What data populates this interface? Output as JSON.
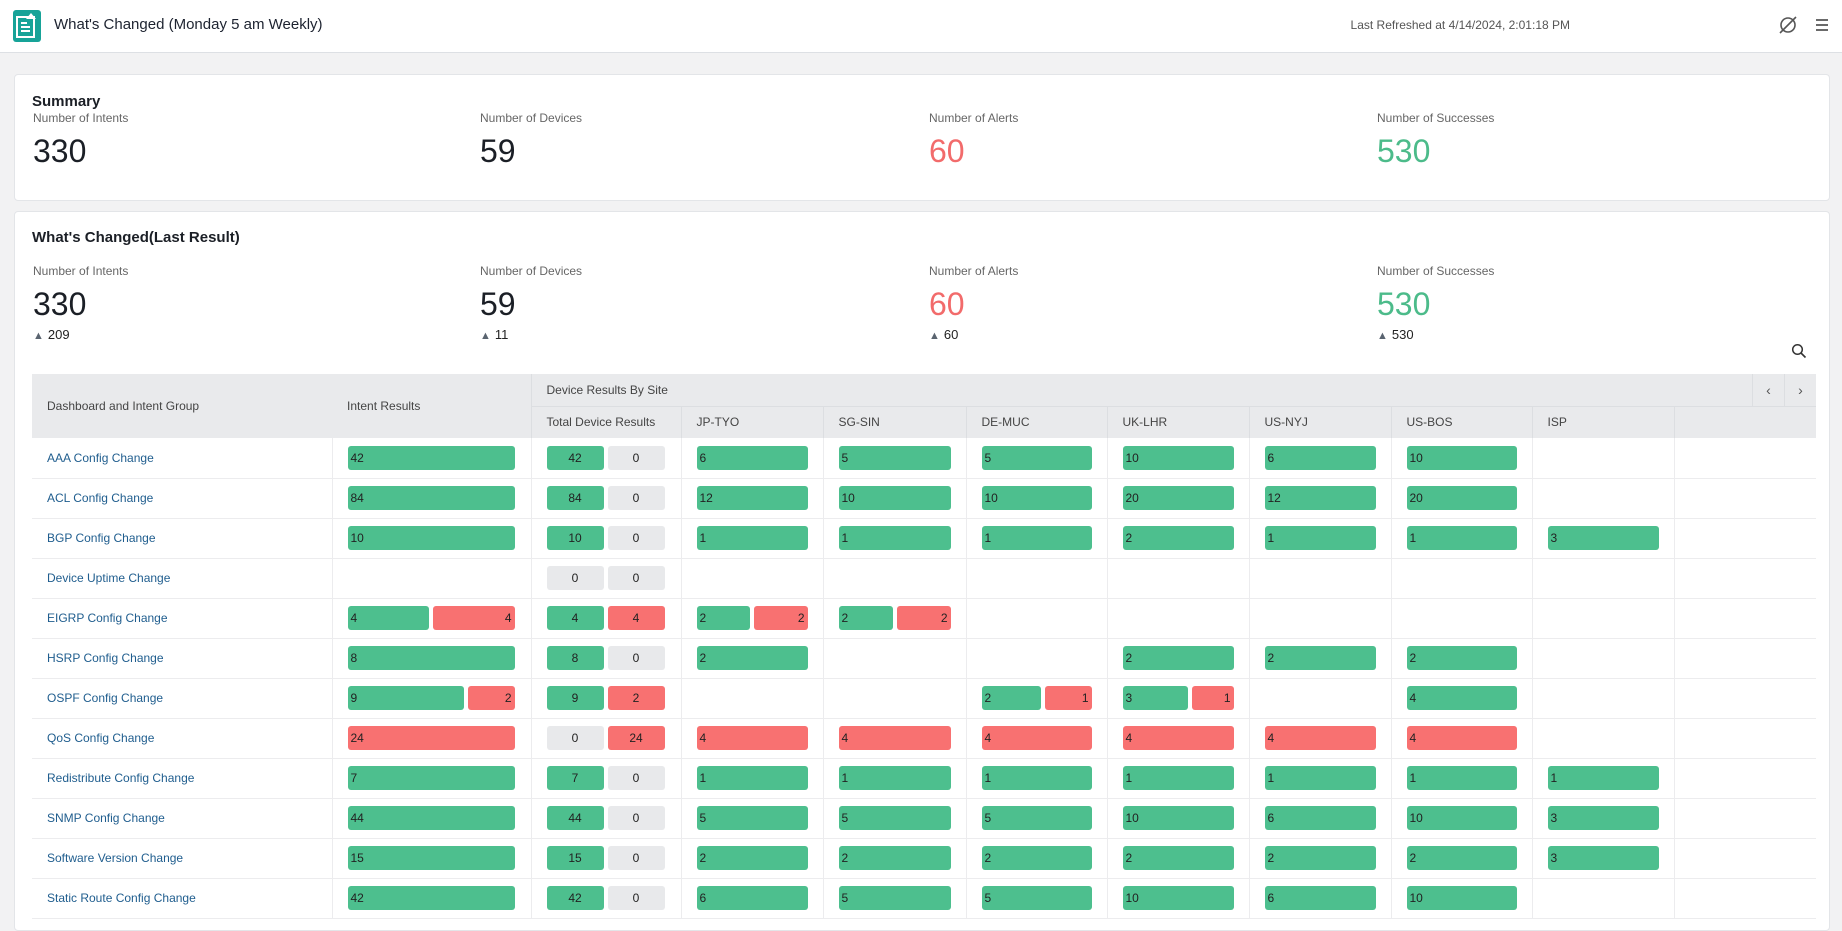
{
  "header": {
    "title": "What's Changed (Monday 5 am Weekly)",
    "last_refreshed": "Last Refreshed at 4/14/2024, 2:01:18 PM",
    "icons": [
      "report-icon",
      "disable-schedule-icon",
      "menu-icon"
    ]
  },
  "summary": {
    "title": "Summary",
    "stats": [
      {
        "label": "Number of Intents",
        "value": "330",
        "color": "#1b1f26"
      },
      {
        "label": "Number of Devices",
        "value": "59",
        "color": "#1b1f26"
      },
      {
        "label": "Number of Alerts",
        "value": "60",
        "color": "#f26b6b"
      },
      {
        "label": "Number of Successes",
        "value": "530",
        "color": "#4cbb8a"
      }
    ]
  },
  "changed": {
    "title": "What's Changed(Last Result)",
    "stats": [
      {
        "label": "Number of Intents",
        "value": "330",
        "delta": "209",
        "color": "#1b1f26"
      },
      {
        "label": "Number of Devices",
        "value": "59",
        "delta": "11",
        "color": "#1b1f26"
      },
      {
        "label": "Number of Alerts",
        "value": "60",
        "delta": "60",
        "color": "#f26b6b"
      },
      {
        "label": "Number of Successes",
        "value": "530",
        "delta": "530",
        "color": "#4cbb8a"
      }
    ]
  },
  "table": {
    "col_group": "Dashboard and Intent Group",
    "col_intent": "Intent Results",
    "col_device_group": "Device Results By Site",
    "col_total": "Total Device Results",
    "sites": [
      "JP-TYO",
      "SG-SIN",
      "DE-MUC",
      "UK-LHR",
      "US-NYJ",
      "US-BOS",
      "ISP"
    ],
    "colors": {
      "success": "#4dbf8e",
      "alert": "#f87171",
      "empty": "#e8e9eb"
    },
    "rows": [
      {
        "name": "AAA Config Change",
        "intent": [
          42,
          0
        ],
        "total": [
          42,
          0
        ],
        "sites": [
          [
            6,
            0
          ],
          [
            5,
            0
          ],
          [
            5,
            0
          ],
          [
            10,
            0
          ],
          [
            6,
            0
          ],
          [
            10,
            0
          ],
          null
        ]
      },
      {
        "name": "ACL Config Change",
        "intent": [
          84,
          0
        ],
        "total": [
          84,
          0
        ],
        "sites": [
          [
            12,
            0
          ],
          [
            10,
            0
          ],
          [
            10,
            0
          ],
          [
            20,
            0
          ],
          [
            12,
            0
          ],
          [
            20,
            0
          ],
          null
        ]
      },
      {
        "name": "BGP Config Change",
        "intent": [
          10,
          0
        ],
        "total": [
          10,
          0
        ],
        "sites": [
          [
            1,
            0
          ],
          [
            1,
            0
          ],
          [
            1,
            0
          ],
          [
            2,
            0
          ],
          [
            1,
            0
          ],
          [
            1,
            0
          ],
          [
            3,
            0
          ]
        ]
      },
      {
        "name": "Device Uptime Change",
        "intent": null,
        "total": [
          0,
          0
        ],
        "sites": [
          null,
          null,
          null,
          null,
          null,
          null,
          null
        ]
      },
      {
        "name": "EIGRP Config Change",
        "intent": [
          4,
          4
        ],
        "total": [
          4,
          4
        ],
        "sites": [
          [
            2,
            2
          ],
          [
            2,
            2
          ],
          null,
          null,
          null,
          null,
          null
        ]
      },
      {
        "name": "HSRP Config Change",
        "intent": [
          8,
          0
        ],
        "total": [
          8,
          0
        ],
        "sites": [
          [
            2,
            0
          ],
          null,
          null,
          [
            2,
            0
          ],
          [
            2,
            0
          ],
          [
            2,
            0
          ],
          null
        ]
      },
      {
        "name": "OSPF Config Change",
        "intent": [
          9,
          2
        ],
        "total": [
          9,
          2
        ],
        "sites": [
          null,
          null,
          [
            2,
            1
          ],
          [
            3,
            1
          ],
          null,
          [
            4,
            0
          ],
          null
        ]
      },
      {
        "name": "QoS Config Change",
        "intent": [
          0,
          24
        ],
        "total": [
          0,
          24
        ],
        "sites": [
          [
            0,
            4
          ],
          [
            0,
            4
          ],
          [
            0,
            4
          ],
          [
            0,
            4
          ],
          [
            0,
            4
          ],
          [
            0,
            4
          ],
          null
        ]
      },
      {
        "name": "Redistribute Config Change",
        "intent": [
          7,
          0
        ],
        "total": [
          7,
          0
        ],
        "sites": [
          [
            1,
            0
          ],
          [
            1,
            0
          ],
          [
            1,
            0
          ],
          [
            1,
            0
          ],
          [
            1,
            0
          ],
          [
            1,
            0
          ],
          [
            1,
            0
          ]
        ]
      },
      {
        "name": "SNMP Config Change",
        "intent": [
          44,
          0
        ],
        "total": [
          44,
          0
        ],
        "sites": [
          [
            5,
            0
          ],
          [
            5,
            0
          ],
          [
            5,
            0
          ],
          [
            10,
            0
          ],
          [
            6,
            0
          ],
          [
            10,
            0
          ],
          [
            3,
            0
          ]
        ]
      },
      {
        "name": "Software Version Change",
        "intent": [
          15,
          0
        ],
        "total": [
          15,
          0
        ],
        "sites": [
          [
            2,
            0
          ],
          [
            2,
            0
          ],
          [
            2,
            0
          ],
          [
            2,
            0
          ],
          [
            2,
            0
          ],
          [
            2,
            0
          ],
          [
            3,
            0
          ]
        ]
      },
      {
        "name": "Static Route Config Change",
        "intent": [
          42,
          0
        ],
        "total": [
          42,
          0
        ],
        "sites": [
          [
            6,
            0
          ],
          [
            5,
            0
          ],
          [
            5,
            0
          ],
          [
            10,
            0
          ],
          [
            6,
            0
          ],
          [
            10,
            0
          ],
          null
        ]
      }
    ]
  }
}
